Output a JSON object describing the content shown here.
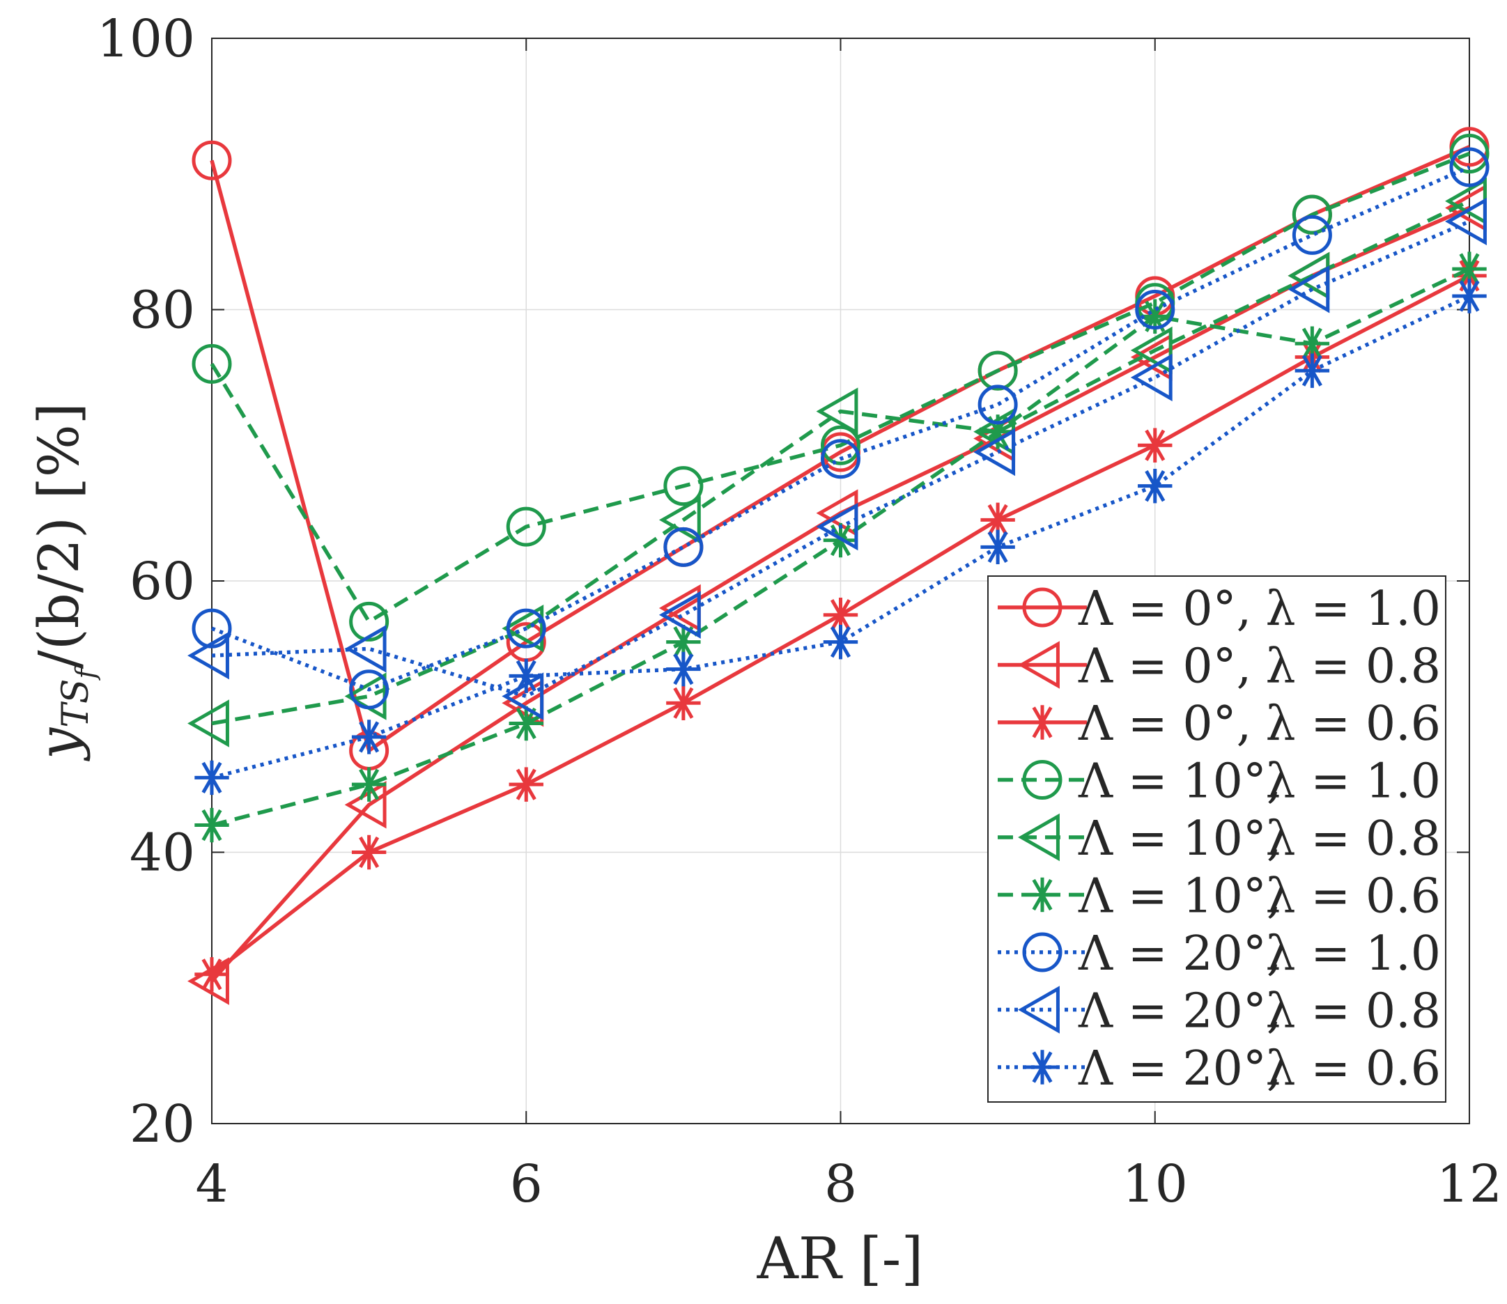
{
  "chart_data": {
    "type": "line",
    "xlabel": "AR [-]",
    "ylabel": "y_{TS_f}/(b/2) [%]",
    "ylabel_parts": {
      "var": "y",
      "sub": "TS",
      "subsub": "f",
      "rest": "/(b/2) [%]"
    },
    "xlim": [
      4,
      12
    ],
    "ylim": [
      20,
      100
    ],
    "xticks": [
      4,
      6,
      8,
      10,
      12
    ],
    "yticks": [
      20,
      40,
      60,
      80,
      100
    ],
    "grid": true,
    "legend_position": "bottom-right",
    "x": [
      4,
      5,
      6,
      7,
      8,
      9,
      10,
      11,
      12
    ],
    "series": [
      {
        "name": "Λ = 0°,  λ = 1.0",
        "sweep": "Λ = 0°,",
        "taper": "λ = 1.0",
        "color": "#e8383d",
        "dash": "solid",
        "marker": "circle",
        "values": [
          91,
          47.5,
          55.5,
          62.5,
          69.5,
          75.5,
          81,
          87,
          92
        ]
      },
      {
        "name": "Λ = 0°,  λ = 0.8",
        "sweep": "Λ = 0°,",
        "taper": "λ = 0.8",
        "color": "#e8383d",
        "dash": "solid",
        "marker": "triangle-left",
        "values": [
          30.5,
          43.5,
          51,
          58,
          65,
          70.5,
          76.5,
          82.5,
          87.5
        ]
      },
      {
        "name": "Λ = 0°,  λ = 0.6",
        "sweep": "Λ = 0°,",
        "taper": "λ = 0.6",
        "color": "#e8383d",
        "dash": "solid",
        "marker": "asterisk",
        "values": [
          31,
          40,
          45,
          51,
          57.5,
          64.5,
          70,
          76.5,
          82.5
        ]
      },
      {
        "name": "Λ = 10°,  λ = 1.0",
        "sweep": "Λ = 10°,",
        "taper": "λ = 1.0",
        "color": "#1f9a4c",
        "dash": "dashed",
        "marker": "circle",
        "values": [
          76,
          57,
          64,
          67,
          70,
          75.5,
          80.5,
          87,
          91.5
        ]
      },
      {
        "name": "Λ = 10°,  λ = 0.8",
        "sweep": "Λ = 10°,",
        "taper": "λ = 0.8",
        "color": "#1f9a4c",
        "dash": "dashed",
        "marker": "triangle-left",
        "values": [
          49.5,
          51.5,
          56.5,
          64.5,
          72.5,
          71,
          77,
          82.5,
          88
        ]
      },
      {
        "name": "Λ = 10°,  λ = 0.6",
        "sweep": "Λ = 10°,",
        "taper": "λ = 0.6",
        "color": "#1f9a4c",
        "dash": "dashed",
        "marker": "asterisk",
        "values": [
          42,
          45,
          49.5,
          55.5,
          63,
          71,
          79.5,
          77.5,
          83
        ]
      },
      {
        "name": "Λ = 20°,  λ = 1.0",
        "sweep": "Λ = 20°,",
        "taper": "λ = 1.0",
        "color": "#1756c8",
        "dash": "dotted",
        "marker": "circle",
        "values": [
          56.5,
          52,
          56.5,
          62.5,
          69,
          73,
          80,
          85.5,
          90.5
        ]
      },
      {
        "name": "Λ = 20°,  λ = 0.8",
        "sweep": "Λ = 20°,",
        "taper": "λ = 0.8",
        "color": "#1756c8",
        "dash": "dotted",
        "marker": "triangle-left",
        "values": [
          54.5,
          55,
          51.5,
          57.5,
          64,
          69.5,
          75,
          81.5,
          86.5
        ]
      },
      {
        "name": "Λ = 20°,  λ = 0.6",
        "sweep": "Λ = 20°,",
        "taper": "λ = 0.6",
        "color": "#1756c8",
        "dash": "dotted",
        "marker": "asterisk",
        "values": [
          45.5,
          48.5,
          53,
          53.5,
          55.5,
          62.5,
          67,
          75.5,
          81
        ]
      }
    ]
  }
}
